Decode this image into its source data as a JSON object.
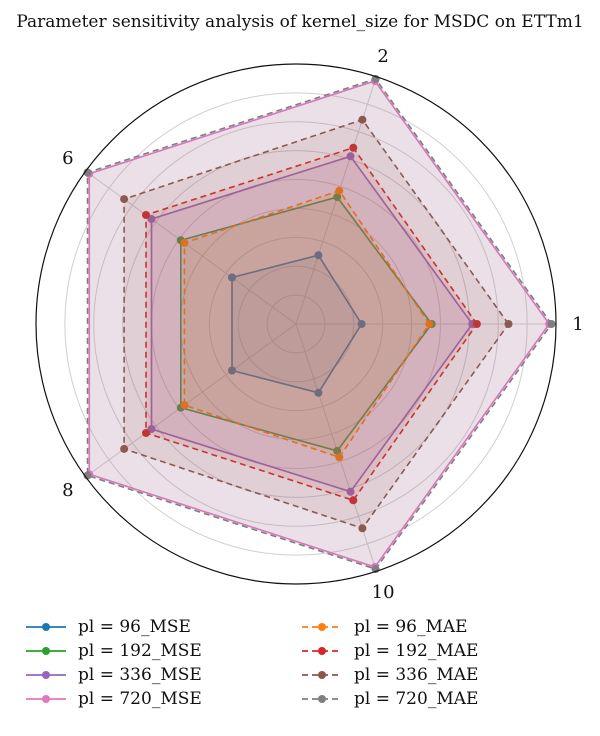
{
  "chart_data": {
    "type": "radar",
    "title": "Parameter sensitivity analysis of kernel_size for MSDC on ETTm1",
    "axes": [
      "1",
      "2",
      "6",
      "8",
      "10"
    ],
    "series": [
      {
        "name": "pl = 96_MSE",
        "values": [
          0.29,
          0.32,
          0.35,
          0.35,
          0.32
        ],
        "color": "#1f77b4",
        "style": "solid"
      },
      {
        "name": "pl = 192_MSE",
        "values": [
          0.6,
          0.59,
          0.63,
          0.63,
          0.59
        ],
        "color": "#2ca02c",
        "style": "solid"
      },
      {
        "name": "pl = 336_MSE",
        "values": [
          0.78,
          0.78,
          0.79,
          0.79,
          0.78
        ],
        "color": "#9467bd",
        "style": "solid"
      },
      {
        "name": "pl = 720_MSE",
        "values": [
          1.12,
          1.13,
          1.13,
          1.13,
          1.13
        ],
        "color": "#e377c2",
        "style": "solid"
      },
      {
        "name": "pl = 96_MAE",
        "values": [
          0.59,
          0.62,
          0.61,
          0.61,
          0.62
        ],
        "color": "#ff7f0e",
        "style": "dashed"
      },
      {
        "name": "pl = 192_MAE",
        "values": [
          0.8,
          0.82,
          0.82,
          0.82,
          0.82
        ],
        "color": "#d62728",
        "style": "dashed"
      },
      {
        "name": "pl = 336_MAE",
        "values": [
          0.94,
          0.95,
          0.94,
          0.94,
          0.95
        ],
        "color": "#8c564b",
        "style": "dashed"
      },
      {
        "name": "pl = 720_MAE",
        "values": [
          1.13,
          1.14,
          1.14,
          1.14,
          1.14
        ],
        "color": "#7f7f7f",
        "style": "dashed"
      }
    ],
    "rlim": [
      0,
      1.15
    ],
    "grid": true,
    "legend_position": "bottom"
  }
}
